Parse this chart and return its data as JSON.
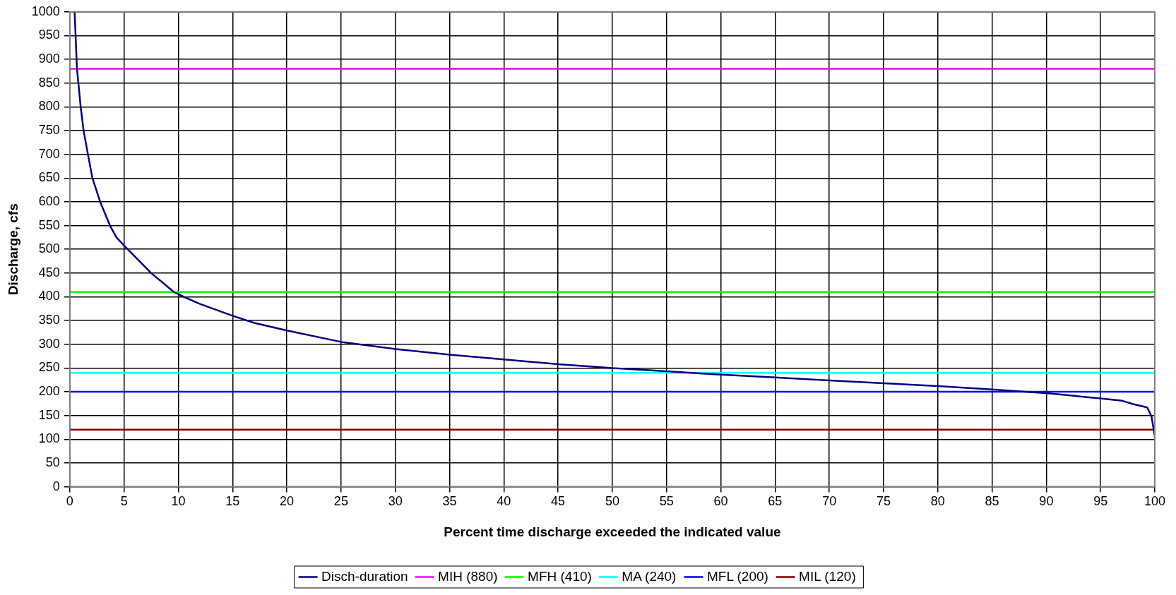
{
  "chart_data": {
    "type": "line",
    "xlabel": "Percent time discharge exceeded the indicated value",
    "ylabel": "Discharge, cfs",
    "xlim": [
      0,
      100
    ],
    "xticks": [
      0,
      5,
      10,
      15,
      20,
      25,
      30,
      35,
      40,
      45,
      50,
      55,
      60,
      65,
      70,
      75,
      80,
      85,
      90,
      95,
      100
    ],
    "ylim": [
      0,
      1000
    ],
    "yticks": [
      0,
      50,
      100,
      150,
      200,
      250,
      300,
      350,
      400,
      450,
      500,
      550,
      600,
      650,
      700,
      750,
      800,
      850,
      900,
      950,
      1000
    ],
    "grid": true,
    "legend": "bottom",
    "marker": "none",
    "line_style": "solid",
    "series": [
      {
        "name": "Disch-duration",
        "color": "#000080",
        "x": [
          0.44,
          0.66,
          0.79,
          1.0,
          1.27,
          1.67,
          2.08,
          2.8,
          3.7,
          4.3,
          5,
          7.5,
          9.6,
          10.5,
          12,
          15,
          17,
          20,
          25,
          30,
          35,
          40,
          45,
          50,
          55,
          60,
          65,
          70,
          75,
          80,
          85,
          88,
          90,
          95,
          97,
          98,
          99.3,
          99.7,
          100
        ],
        "values": [
          1000,
          880,
          850,
          800,
          750,
          700,
          650,
          600,
          550,
          525,
          508,
          450,
          410,
          400,
          385,
          360,
          345,
          329,
          305,
          290,
          278,
          268,
          258,
          250,
          243,
          236,
          230,
          224,
          218,
          212,
          205,
          200,
          197,
          186,
          181,
          174,
          167,
          148,
          106
        ]
      },
      {
        "name": "MIH (880)",
        "color": "#ff00ff",
        "x": [
          0,
          100
        ],
        "values": [
          880,
          880
        ]
      },
      {
        "name": "MFH (410)",
        "color": "#00ff00",
        "x": [
          0,
          100
        ],
        "values": [
          410,
          410
        ]
      },
      {
        "name": "MA (240)",
        "color": "#00ffff",
        "x": [
          0,
          100
        ],
        "values": [
          240,
          240
        ]
      },
      {
        "name": "MFL (200)",
        "color": "#0000ff",
        "x": [
          0,
          100
        ],
        "values": [
          200,
          200
        ]
      },
      {
        "name": "MIL (120)",
        "color": "#800000",
        "x": [
          0,
          100
        ],
        "values": [
          120,
          120
        ]
      }
    ]
  }
}
